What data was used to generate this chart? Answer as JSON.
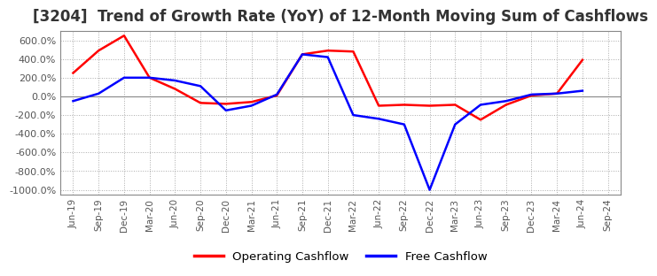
{
  "title": "[3204]  Trend of Growth Rate (YoY) of 12-Month Moving Sum of Cashflows",
  "title_fontsize": 12,
  "background_color": "#ffffff",
  "grid_color": "#aaaaaa",
  "ylim": [
    -1050,
    700
  ],
  "yticks": [
    600,
    400,
    200,
    0,
    -200,
    -400,
    -600,
    -800,
    -1000
  ],
  "x_labels": [
    "Jun-19",
    "Sep-19",
    "Dec-19",
    "Mar-20",
    "Jun-20",
    "Sep-20",
    "Dec-20",
    "Mar-21",
    "Jun-21",
    "Sep-21",
    "Dec-21",
    "Mar-22",
    "Jun-22",
    "Sep-22",
    "Dec-22",
    "Mar-23",
    "Jun-23",
    "Sep-23",
    "Dec-23",
    "Mar-24",
    "Jun-24",
    "Sep-24"
  ],
  "operating_cashflow": [
    250,
    490,
    650,
    200,
    80,
    -70,
    -80,
    -60,
    10,
    450,
    490,
    480,
    -100,
    -90,
    -100,
    -90,
    -250,
    -90,
    10,
    30,
    390,
    null
  ],
  "free_cashflow": [
    -50,
    30,
    200,
    200,
    170,
    110,
    -150,
    -100,
    20,
    450,
    420,
    -200,
    -240,
    -300,
    -1000,
    -300,
    -90,
    -50,
    20,
    30,
    60,
    null
  ],
  "operating_color": "#ff0000",
  "free_color": "#0000ff",
  "legend_labels": [
    "Operating Cashflow",
    "Free Cashflow"
  ],
  "line_width": 1.8
}
